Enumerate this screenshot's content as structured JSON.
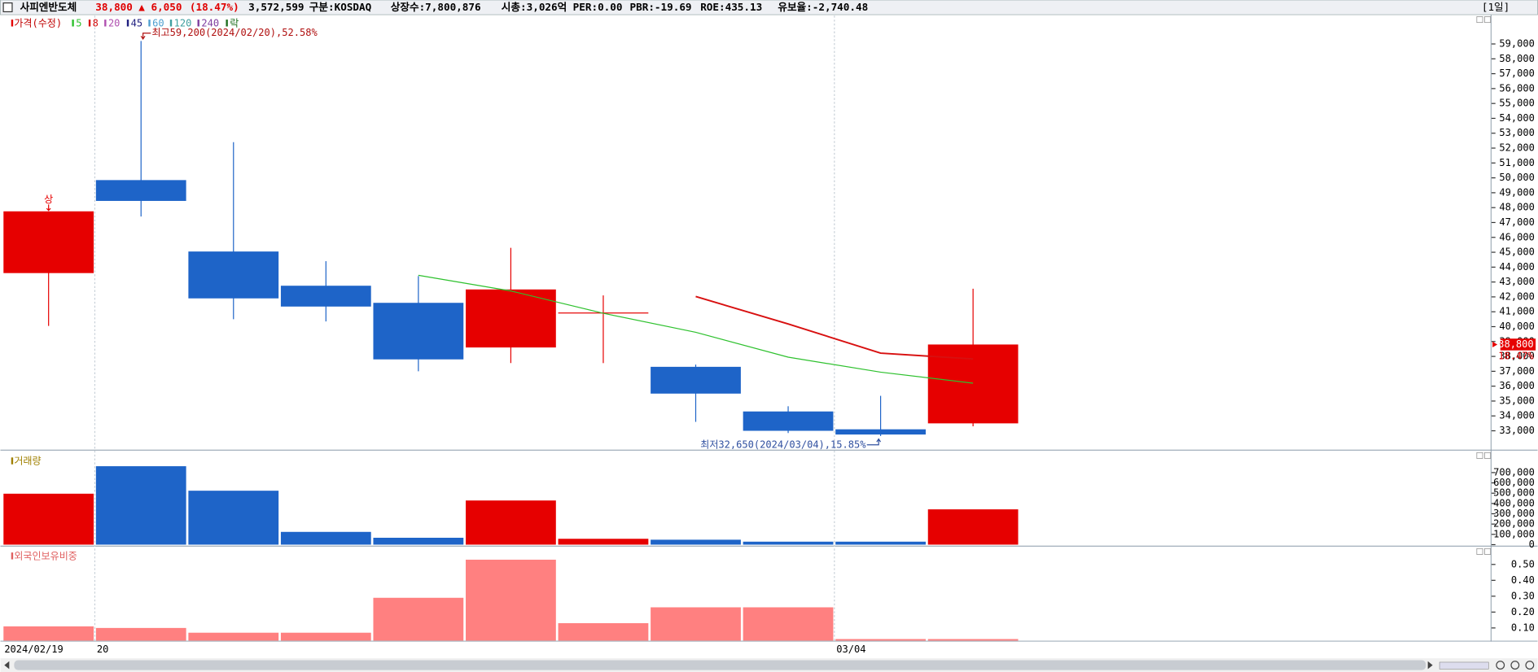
{
  "header": {
    "name": "사피엔반도체",
    "price": "38,800",
    "change": "▲ 6,050",
    "change_pct": "(18.47%)",
    "volume": "3,572,599",
    "market": "구분:KOSDAQ",
    "shares": "상장수:7,800,876",
    "market_cap": "시총:3,026억",
    "per": "PER:0.00",
    "pbr": "PBR:-19.69",
    "roe": "ROE:435.13",
    "reserve": "유보율:-2,740.48",
    "period": "[1일]"
  },
  "chart_data": [
    {
      "type": "candlestick",
      "title": "가격(수정)",
      "open": [
        43600,
        49850,
        45050,
        42750,
        41600,
        38600,
        40950,
        37300,
        34300,
        33100,
        33500
      ],
      "high": [
        47750,
        59200,
        52400,
        44400,
        43400,
        45300,
        42100,
        37450,
        34650,
        35350,
        42550
      ],
      "low": [
        40050,
        47400,
        40500,
        40350,
        37000,
        37550,
        37550,
        33600,
        32850,
        32650,
        33300
      ],
      "close": [
        47750,
        48450,
        41900,
        41350,
        37800,
        42500,
        40950,
        35500,
        33000,
        32750,
        38800
      ],
      "up_color": "#e60000",
      "down_color": "#1e64c8",
      "series": [
        {
          "name": "5",
          "color": "#2ec12e",
          "values": [
            null,
            null,
            null,
            null,
            43450,
            42400,
            40900,
            39620,
            37950,
            36940,
            36200
          ]
        },
        {
          "name": "8",
          "color": "#d81010",
          "values": [
            null,
            null,
            null,
            null,
            null,
            null,
            null,
            42025,
            40180,
            38220,
            37830
          ]
        }
      ],
      "legend_extra": [
        {
          "name": "20",
          "color": "#b050b0"
        },
        {
          "name": "45",
          "color": "#202080"
        },
        {
          "name": "60",
          "color": "#50a0d0"
        },
        {
          "name": "120",
          "color": "#40a0a0"
        },
        {
          "name": "240",
          "color": "#8040a0"
        },
        {
          "name": "락",
          "color": "#207020"
        }
      ],
      "annotations": [
        {
          "text": "최고59,200(2024/02/20),52.58%",
          "index": 1,
          "value": 59200,
          "color": "#b01010"
        },
        {
          "text": "최저32,650(2024/03/04),15.85%",
          "index": 9,
          "value": 32650,
          "color": "#3050a0"
        }
      ],
      "limit_up_mark": "상",
      "price_marker_pct": "18.47%",
      "ylim": [
        31800,
        60900
      ],
      "yticks": [
        {
          "value": 33000,
          "label": "33,000"
        },
        {
          "value": 34000,
          "label": "34,000"
        },
        {
          "value": 35000,
          "label": "35,000"
        },
        {
          "value": 36000,
          "label": "36,000"
        },
        {
          "value": 37000,
          "label": "37,000"
        },
        {
          "value": 38000,
          "label": "38,000"
        },
        {
          "value": 39000,
          "label": "39,000"
        },
        {
          "value": 40000,
          "label": "40,000"
        },
        {
          "value": 41000,
          "label": "41,000"
        },
        {
          "value": 42000,
          "label": "42,000"
        },
        {
          "value": 43000,
          "label": "43,000"
        },
        {
          "value": 44000,
          "label": "44,000"
        },
        {
          "value": 45000,
          "label": "45,000"
        },
        {
          "value": 46000,
          "label": "46,000"
        },
        {
          "value": 47000,
          "label": "47,000"
        },
        {
          "value": 48000,
          "label": "48,000"
        },
        {
          "value": 49000,
          "label": "49,000"
        },
        {
          "value": 50000,
          "label": "50,000"
        },
        {
          "value": 51000,
          "label": "51,000"
        },
        {
          "value": 52000,
          "label": "52,000"
        },
        {
          "value": 53000,
          "label": "53,000"
        },
        {
          "value": 54000,
          "label": "54,000"
        },
        {
          "value": 55000,
          "label": "55,000"
        },
        {
          "value": 56000,
          "label": "56,000"
        },
        {
          "value": 57000,
          "label": "57,000"
        },
        {
          "value": 58000,
          "label": "58,000"
        },
        {
          "value": 59000,
          "label": "59,000"
        }
      ]
    },
    {
      "type": "bar",
      "title": "거래량",
      "title_color": "#a08000",
      "values": [
        495000,
        762000,
        524000,
        124000,
        67000,
        429000,
        57000,
        48000,
        29000,
        29000,
        343000
      ],
      "ylim": [
        0,
        885000
      ],
      "yticks": [
        0,
        {
          "value": 100000,
          "label": "100,000"
        },
        {
          "value": 200000,
          "label": "200,000"
        },
        {
          "value": 300000,
          "label": "300,000"
        },
        {
          "value": 400000,
          "label": "400,000"
        },
        {
          "value": 500000,
          "label": "500,000"
        },
        {
          "value": 600000,
          "label": "600,000"
        },
        {
          "value": 700000,
          "label": "700,000"
        }
      ]
    },
    {
      "type": "bar",
      "title": "외국인보유비중",
      "title_color": "#e06060",
      "color": "#ff8080",
      "categories": [
        "2024/02/19",
        "20",
        null,
        null,
        null,
        null,
        null,
        null,
        null,
        "03/04",
        null
      ],
      "values": [
        0.11,
        0.1,
        0.07,
        0.07,
        0.29,
        0.53,
        0.13,
        0.23,
        0.23,
        0.03,
        0.03
      ],
      "ylim": [
        0.02,
        0.6
      ],
      "yticks": [
        {
          "value": 0.1,
          "label": "0.10"
        },
        {
          "value": 0.2,
          "label": "0.20"
        },
        {
          "value": 0.3,
          "label": "0.30"
        },
        {
          "value": 0.4,
          "label": "0.40"
        },
        {
          "value": 0.5,
          "label": "0.50"
        }
      ]
    }
  ]
}
